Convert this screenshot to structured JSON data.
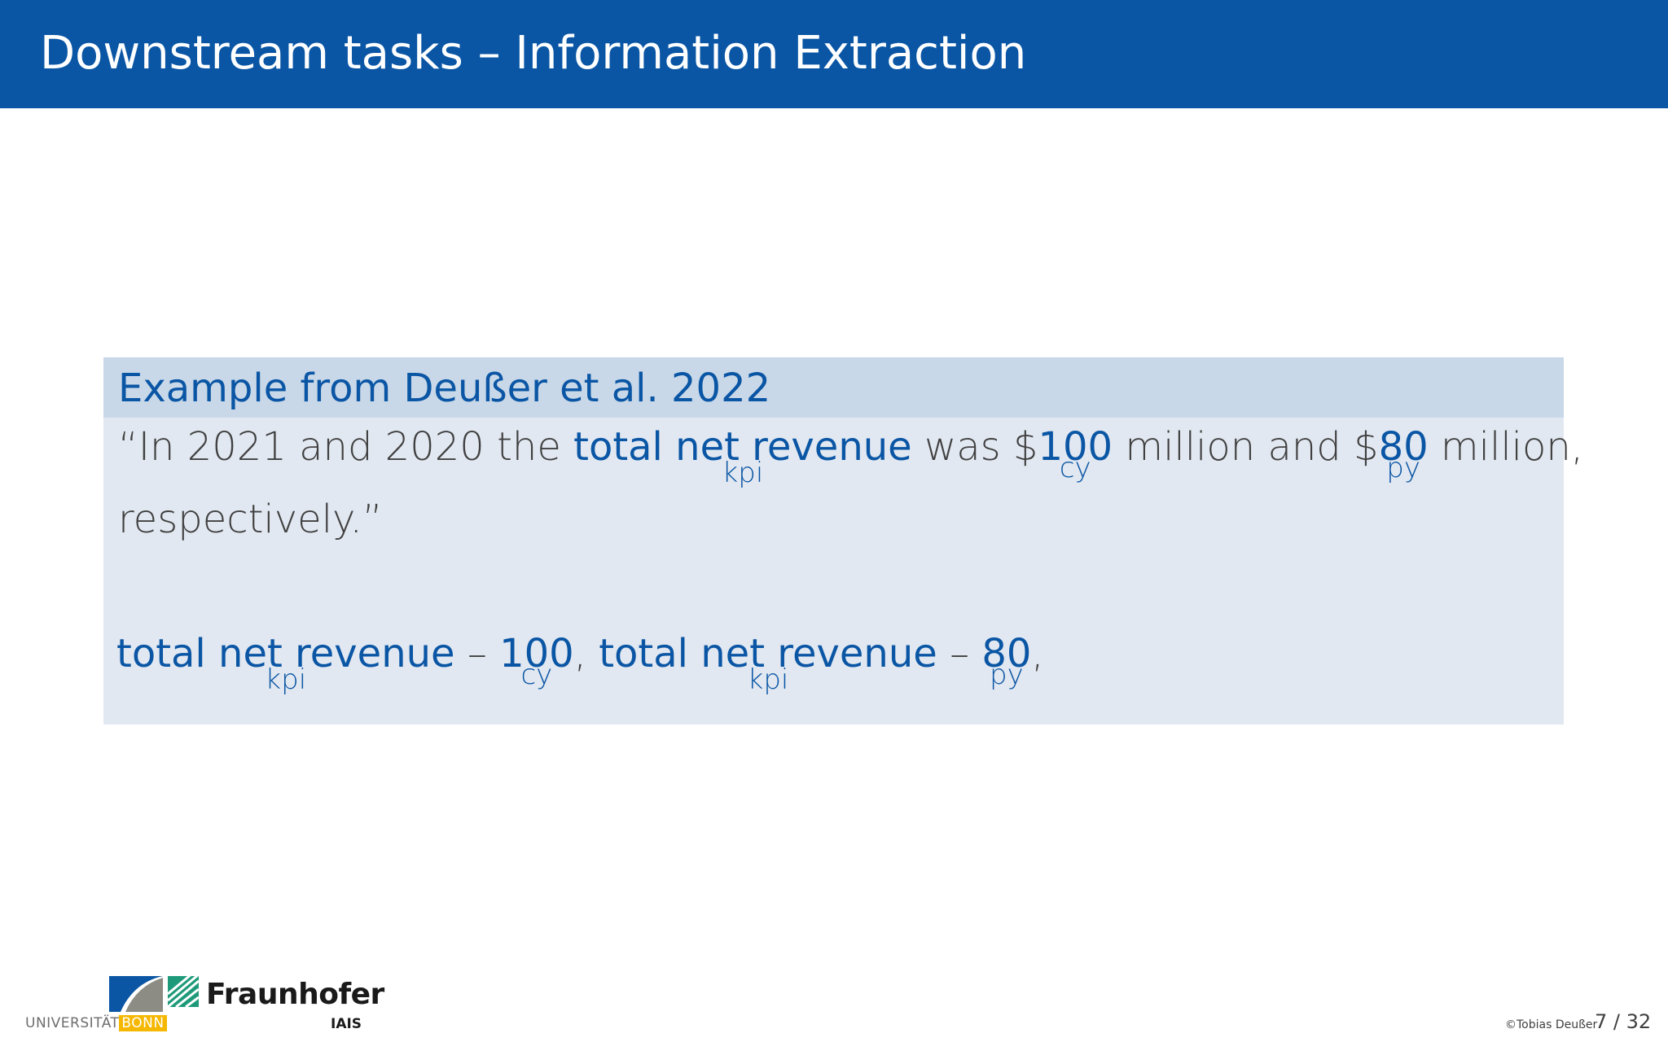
{
  "slide": {
    "title": "Downstream tasks – Information Extraction"
  },
  "example": {
    "title": "Example from Deußer et al. 2022",
    "quote": {
      "prefix": "“In 2021 and 2020 the ",
      "kpi_text": "total net revenue",
      "kpi_label": "kpi",
      "middle1": " was $",
      "cy_text": "100",
      "cy_label": "cy",
      "middle2": " million and $",
      "py_text": "80",
      "py_label": "py",
      "suffix": " million,",
      "line2": "respectively.”"
    },
    "extraction": {
      "kpi1_text": "total net revenue",
      "kpi1_label": "kpi",
      "sep1": " – ",
      "cy_text": "100",
      "cy_label": "cy",
      "comma1": ", ",
      "kpi2_text": "total net revenue",
      "kpi2_label": "kpi",
      "sep2": " – ",
      "py_text": "80",
      "py_label": "py",
      "comma2": ","
    }
  },
  "footer": {
    "university_prefix": "UNIVERSITÄT",
    "university_name": "BONN",
    "institute_name": "Fraunhofer",
    "institute_sub": "IAIS",
    "copyright": "©Tobias Deußer",
    "page": "7 / 32"
  },
  "colors": {
    "title_bar": "#0a56a5",
    "block_header": "#c9d8e8",
    "block_body": "#e2e8f1",
    "accent": "#0a56a5",
    "bonn_yellow": "#f5b700",
    "fraunhofer_green": "#1e9a7a"
  }
}
